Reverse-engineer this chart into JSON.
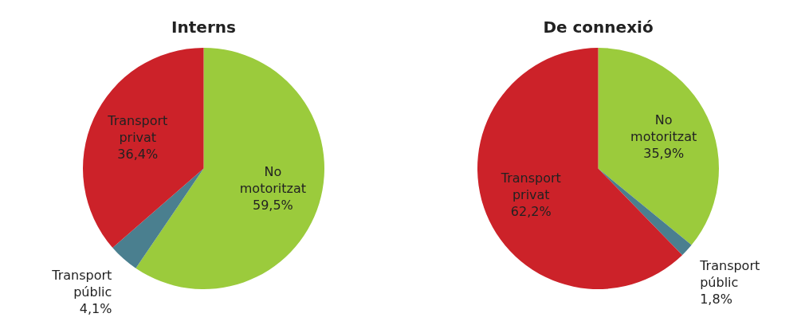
{
  "chart_data": [
    {
      "type": "pie",
      "title": "Interns",
      "categories": [
        "No motoritzat",
        "Transport públic",
        "Transport privat"
      ],
      "values": [
        59.5,
        4.1,
        36.4
      ],
      "colors": [
        "#9bcb3c",
        "#4a7f8f",
        "#cc2229"
      ],
      "value_labels": [
        "59,5%",
        "4,1%",
        "36,4%"
      ],
      "legend": false
    },
    {
      "type": "pie",
      "title": "De connexió",
      "categories": [
        "No motoritzat",
        "Transport públic",
        "Transport privat"
      ],
      "values": [
        35.9,
        1.8,
        62.2
      ],
      "colors": [
        "#9bcb3c",
        "#4a7f8f",
        "#cc2229"
      ],
      "value_labels": [
        "35,9%",
        "1,8%",
        "62,2%"
      ],
      "legend": false
    }
  ]
}
